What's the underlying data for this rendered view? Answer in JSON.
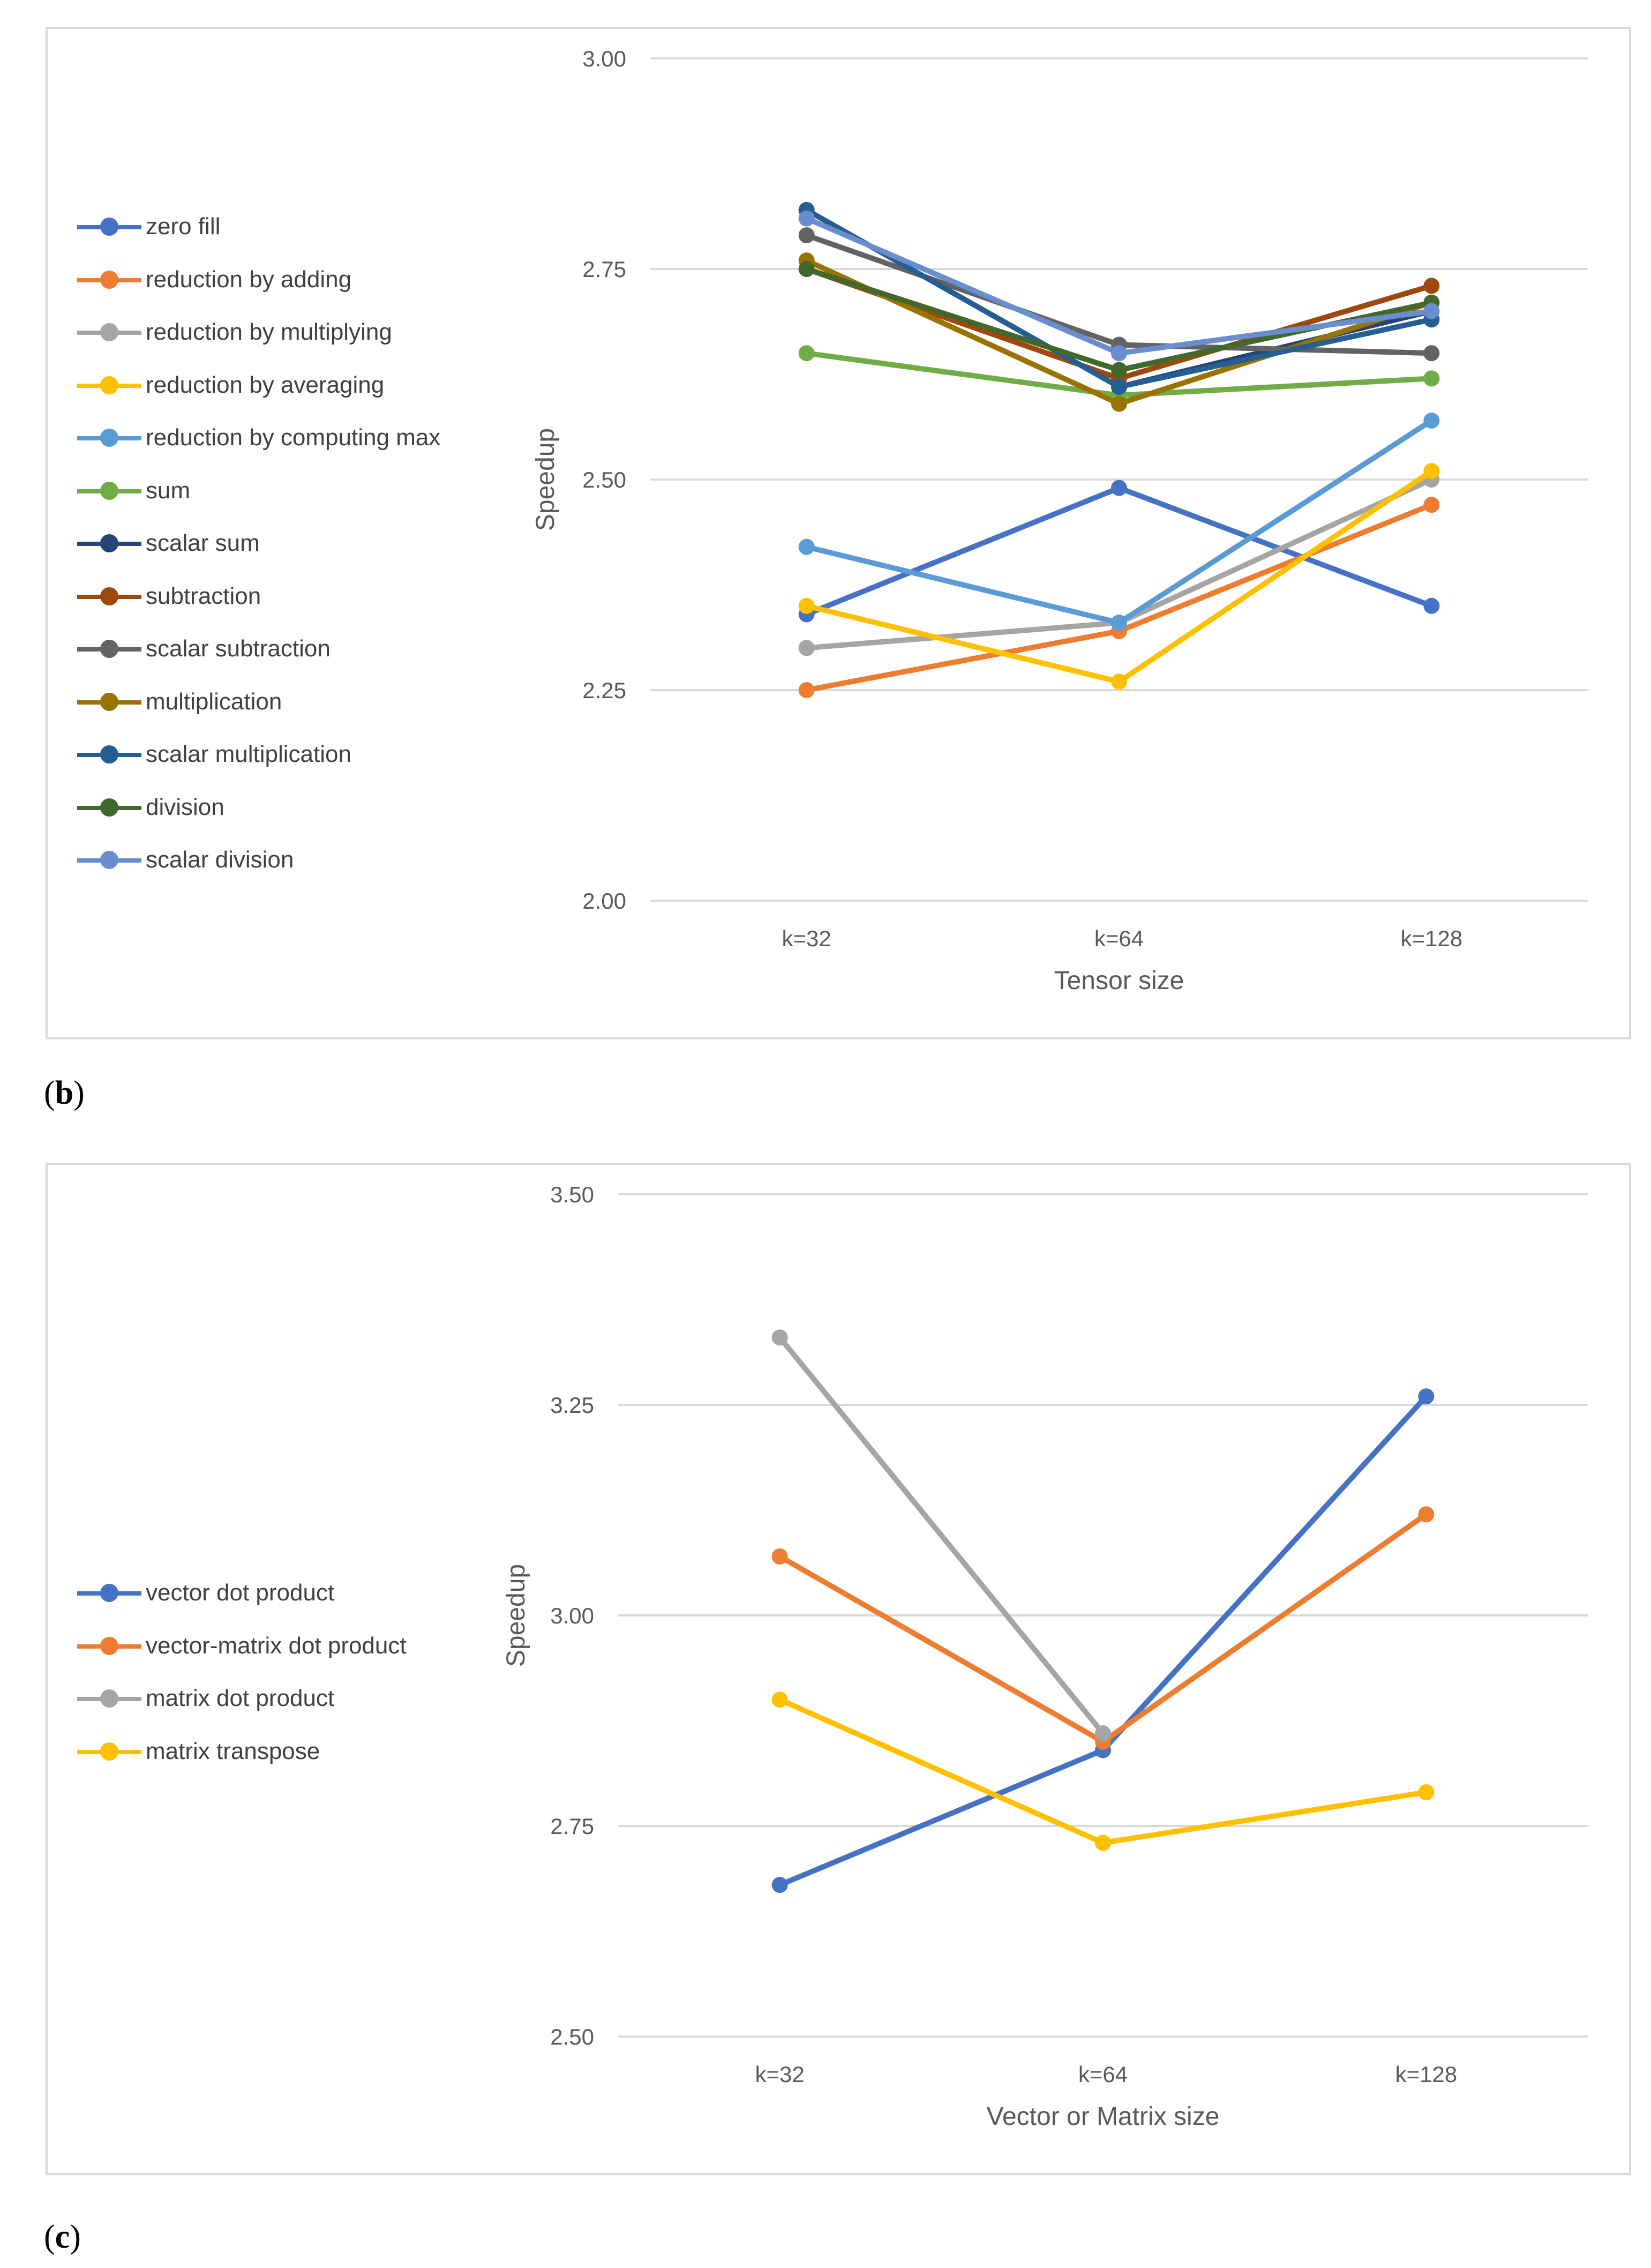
{
  "chart_data": [
    {
      "type": "line",
      "panel_label": "b",
      "title": "",
      "xlabel": "Tensor size",
      "ylabel": "Speedup",
      "categories": [
        "k=32",
        "k=64",
        "k=128"
      ],
      "ylim": [
        2.0,
        3.0
      ],
      "yticks": [
        "2.00",
        "2.25",
        "2.50",
        "2.75",
        "3.00"
      ],
      "grid": true,
      "legend_position": "left",
      "series": [
        {
          "name": "zero fill",
          "color": "#4472c4",
          "values": [
            2.34,
            2.49,
            2.35
          ]
        },
        {
          "name": "reduction by adding",
          "color": "#ed7d31",
          "values": [
            2.25,
            2.32,
            2.47
          ]
        },
        {
          "name": "reduction by multiplying",
          "color": "#a5a5a5",
          "values": [
            2.3,
            2.33,
            2.5
          ]
        },
        {
          "name": "reduction by averaging",
          "color": "#ffc000",
          "values": [
            2.35,
            2.26,
            2.51
          ]
        },
        {
          "name": "reduction by computing max",
          "color": "#5b9bd5",
          "values": [
            2.42,
            2.33,
            2.57
          ]
        },
        {
          "name": "sum",
          "color": "#70ad47",
          "values": [
            2.65,
            2.6,
            2.62
          ]
        },
        {
          "name": "scalar sum",
          "color": "#264478",
          "values": [
            2.82,
            2.61,
            2.7
          ]
        },
        {
          "name": "subtraction",
          "color": "#9e480e",
          "values": [
            2.75,
            2.62,
            2.73
          ]
        },
        {
          "name": "scalar subtraction",
          "color": "#636363",
          "values": [
            2.79,
            2.66,
            2.65
          ]
        },
        {
          "name": "multiplication",
          "color": "#997300",
          "values": [
            2.76,
            2.59,
            2.71
          ]
        },
        {
          "name": "scalar multiplication",
          "color": "#255e91",
          "values": [
            2.82,
            2.61,
            2.69
          ]
        },
        {
          "name": "division",
          "color": "#43682b",
          "values": [
            2.75,
            2.63,
            2.71
          ]
        },
        {
          "name": "scalar division",
          "color": "#698ed0",
          "values": [
            2.81,
            2.65,
            2.7
          ]
        }
      ]
    },
    {
      "type": "line",
      "panel_label": "c",
      "title": "",
      "xlabel": "Vector or Matrix size",
      "ylabel": "Speedup",
      "categories": [
        "k=32",
        "k=64",
        "k=128"
      ],
      "ylim": [
        2.5,
        3.5
      ],
      "yticks": [
        "2.50",
        "2.75",
        "3.00",
        "3.25",
        "3.50"
      ],
      "grid": true,
      "legend_position": "left",
      "series": [
        {
          "name": "vector dot product",
          "color": "#4472c4",
          "values": [
            2.68,
            2.84,
            3.26
          ]
        },
        {
          "name": "vector-matrix dot product",
          "color": "#ed7d31",
          "values": [
            3.07,
            2.85,
            3.12
          ]
        },
        {
          "name": "matrix dot product",
          "color": "#a5a5a5",
          "values": [
            3.33,
            2.86,
            null
          ]
        },
        {
          "name": "matrix transpose",
          "color": "#ffc000",
          "values": [
            2.9,
            2.73,
            2.79
          ]
        }
      ]
    }
  ]
}
